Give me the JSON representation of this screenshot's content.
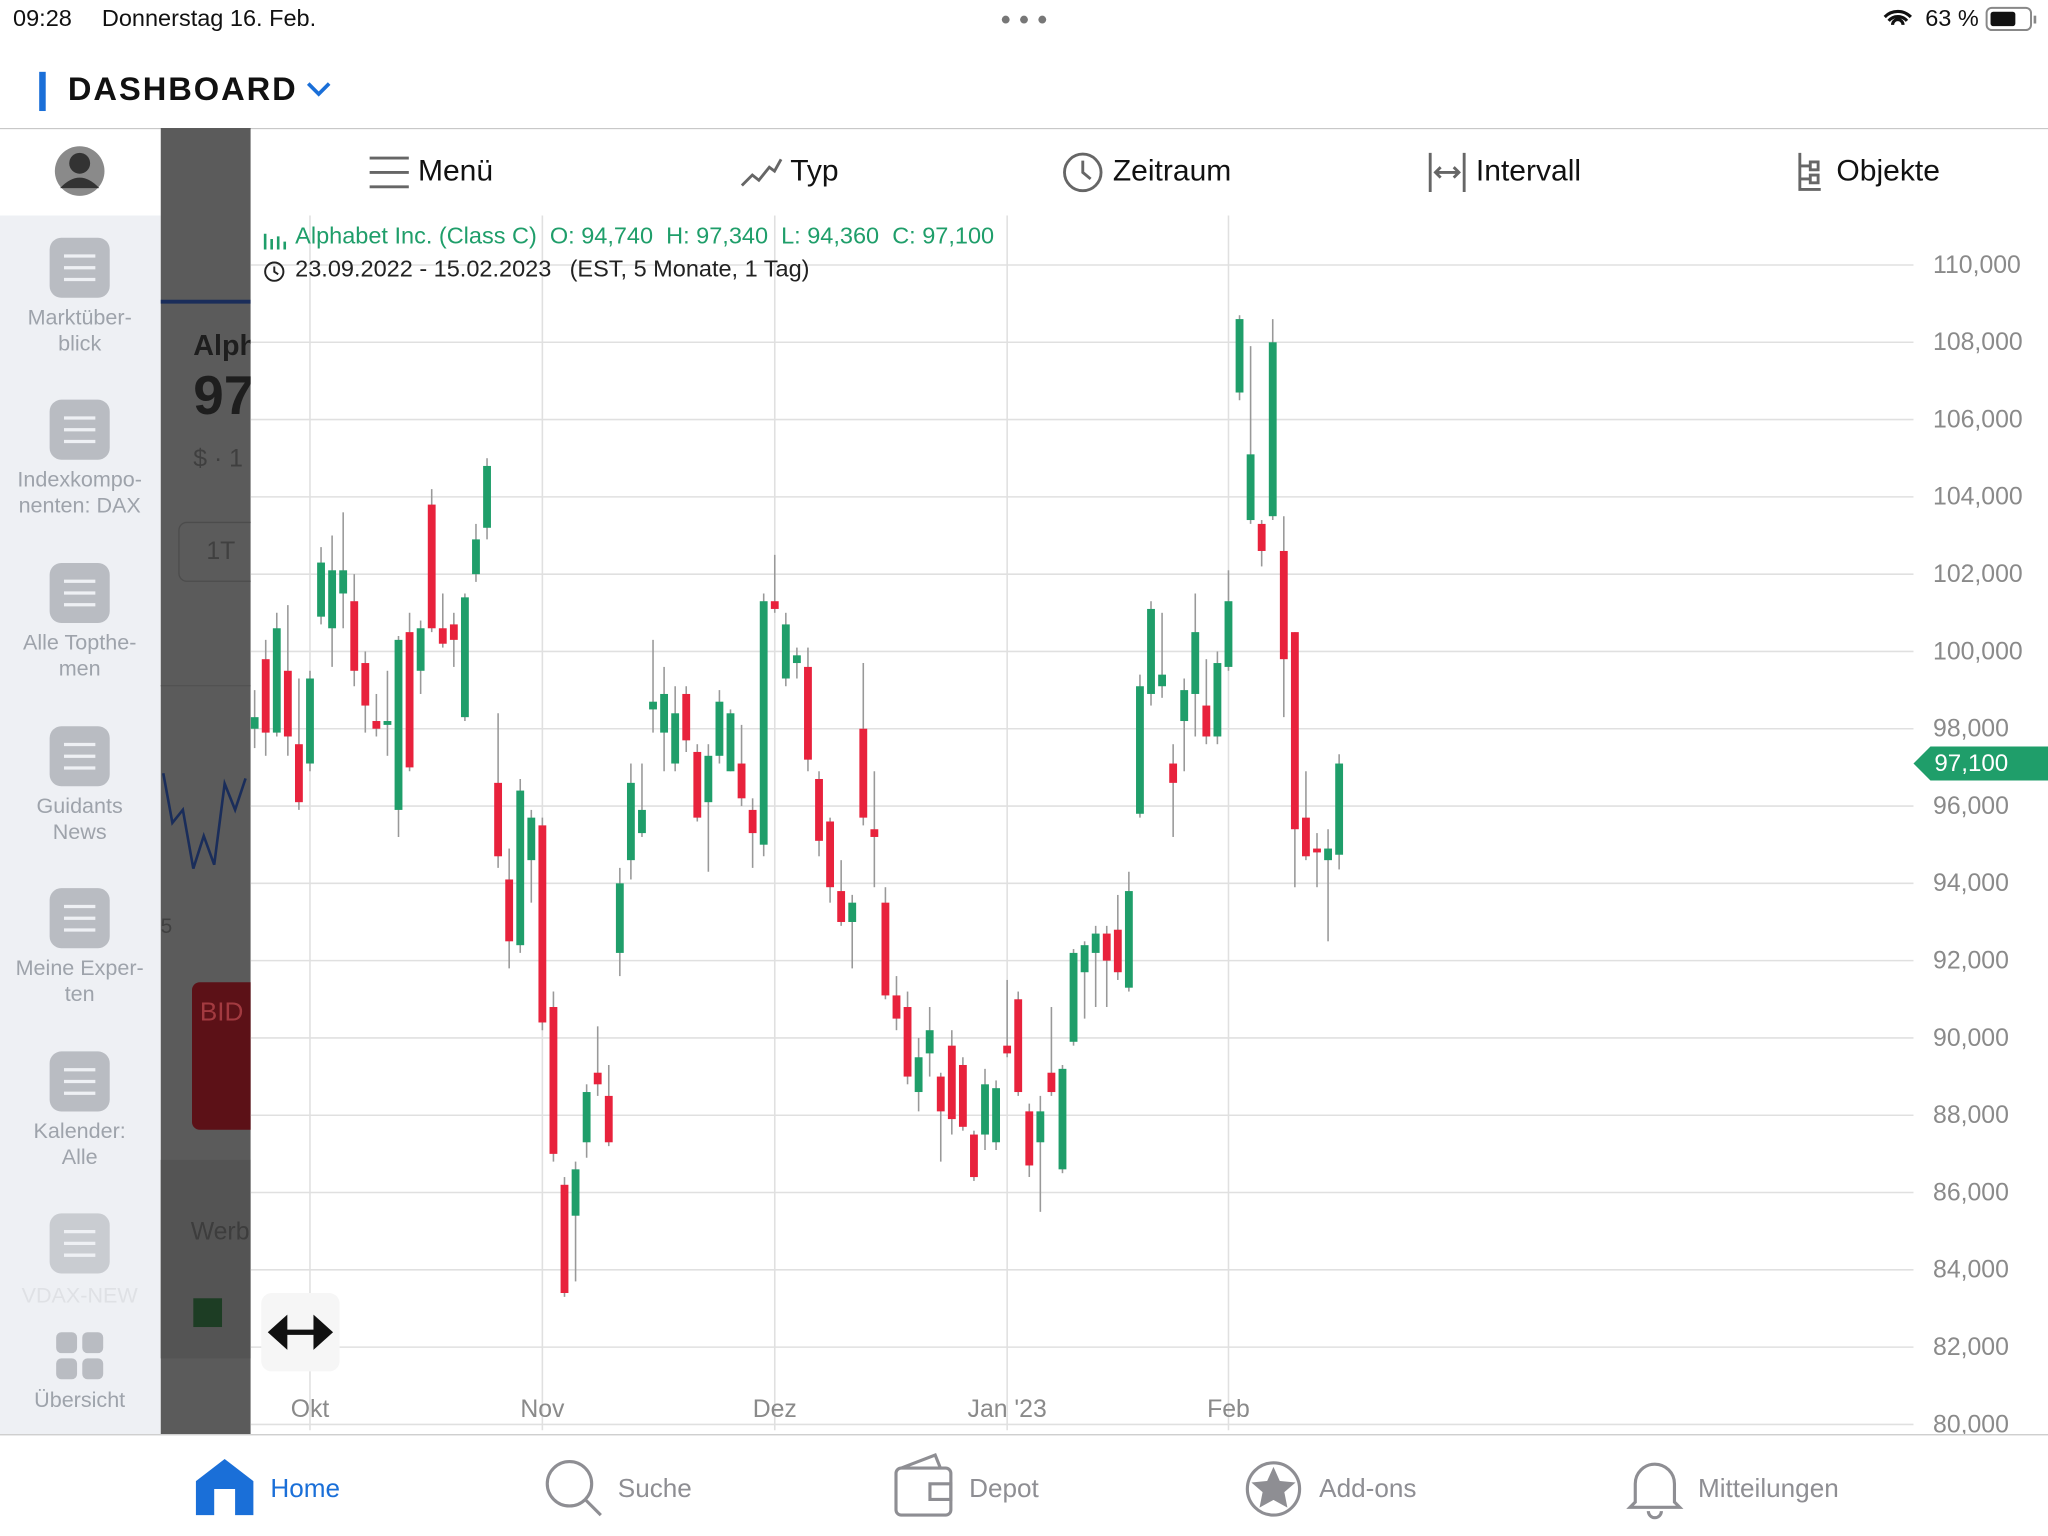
{
  "status_bar": {
    "time": "09:28",
    "date": "Donnerstag 16. Feb.",
    "battery": "63 %"
  },
  "header": {
    "title": "DASHBOARD"
  },
  "sidebar": {
    "items": [
      [
        "Marktüber-",
        "blick"
      ],
      [
        "Indexkompo-",
        "nenten: DAX"
      ],
      [
        "Alle Topthe-",
        "men"
      ],
      [
        "Guidants",
        "News"
      ],
      [
        "Meine Exper-",
        "ten"
      ],
      [
        "Kalender:",
        "Alle"
      ],
      [
        "VDAX-NEW"
      ],
      [
        "Übersicht"
      ]
    ]
  },
  "background": {
    "name": "Alph",
    "price": "97",
    "currency": "$ · 1",
    "period": "1T",
    "axis": "5",
    "bid": "BID",
    "ad": "Werb"
  },
  "toolbar": [
    "Menü",
    "Typ",
    "Zeitraum",
    "Intervall",
    "Objekte"
  ],
  "chart_data": {
    "type": "candlestick",
    "instrument": "Alphabet Inc. (Class C)",
    "ohlc": [
      "O: 94,740",
      "H: 97,340",
      "L: 94,360",
      "C: 97,100"
    ],
    "range": "23.09.2022 - 15.02.2023",
    "range_detail": "(EST, 5 Monate, 1 Tag)",
    "up_color": "#1f9e6a",
    "down_color": "#e8223c",
    "grid": true,
    "open": [
      98000,
      99800,
      97900,
      99500,
      97600,
      97100,
      100900,
      100600,
      101500,
      101300,
      99700,
      98200,
      98100,
      95900,
      100500,
      99500,
      103800,
      100600,
      100700,
      98300,
      102000,
      103200,
      96600,
      94100,
      92400,
      94600,
      95500,
      90800,
      86200,
      85400,
      87300,
      89100,
      88500,
      92200,
      94600,
      95300,
      98500,
      97900,
      97100,
      98900,
      97400,
      96100,
      97300,
      96900,
      97100,
      95900,
      95000,
      101300,
      99300,
      99700,
      99600,
      96700,
      95600,
      93800,
      93000,
      98000,
      95400,
      93500,
      91100,
      90800,
      88600,
      89600,
      89000,
      89800,
      89300,
      87500,
      87500,
      87300,
      89800,
      91000,
      88100,
      87300,
      89100,
      86600,
      89900,
      91700,
      92200,
      92700,
      92800,
      91300,
      95800,
      98900,
      99100,
      97100,
      98200,
      98900,
      98600,
      97800,
      99600,
      106700,
      103400,
      103300,
      103500,
      102600,
      100500,
      95700,
      94900,
      94600,
      94740
    ],
    "high": [
      99000,
      100300,
      101000,
      101200,
      99300,
      99500,
      102700,
      103000,
      103600,
      102000,
      100000,
      98900,
      99500,
      100400,
      101000,
      100800,
      104200,
      101500,
      101000,
      101500,
      103300,
      105000,
      98400,
      94900,
      96700,
      95900,
      95700,
      91200,
      86400,
      86800,
      88800,
      90300,
      89300,
      94400,
      97100,
      97100,
      100300,
      99600,
      99100,
      99100,
      97600,
      97600,
      99000,
      98500,
      98100,
      96200,
      101500,
      102500,
      101000,
      100100,
      100100,
      96900,
      95700,
      94600,
      93700,
      99700,
      96900,
      93900,
      91600,
      91200,
      90000,
      90800,
      89100,
      90200,
      89500,
      87600,
      89200,
      88900,
      91500,
      91200,
      88300,
      88500,
      90800,
      89300,
      92300,
      92500,
      92900,
      92900,
      93700,
      94300,
      99400,
      101300,
      101000,
      97600,
      99300,
      101500,
      99800,
      100000,
      102100,
      108700,
      107900,
      103400,
      108600,
      103500,
      100500,
      96900,
      95300,
      95400,
      97340
    ],
    "low": [
      97500,
      97300,
      97800,
      97300,
      95900,
      96900,
      100700,
      99600,
      100600,
      99100,
      97900,
      97800,
      97300,
      95200,
      96900,
      98900,
      100500,
      100100,
      99600,
      98200,
      101800,
      102900,
      94400,
      91800,
      92200,
      93500,
      90200,
      86800,
      83300,
      83700,
      86900,
      88500,
      87200,
      91600,
      94100,
      95200,
      97900,
      96900,
      96900,
      97400,
      95600,
      94300,
      97100,
      96900,
      96000,
      94400,
      94700,
      101000,
      99100,
      99300,
      96900,
      94700,
      93500,
      92900,
      91800,
      95500,
      93900,
      91000,
      90200,
      88800,
      88100,
      89000,
      86800,
      87500,
      87600,
      86300,
      87100,
      87100,
      89500,
      88500,
      86400,
      85500,
      88500,
      86500,
      89800,
      90500,
      90800,
      90800,
      91500,
      91200,
      95700,
      98600,
      98800,
      95200,
      96900,
      97800,
      97600,
      97600,
      99500,
      106500,
      103300,
      102200,
      103400,
      98300,
      93900,
      94600,
      93900,
      92500,
      94360
    ],
    "close": [
      98300,
      97900,
      100600,
      97800,
      96100,
      99300,
      102300,
      102100,
      102100,
      99500,
      98600,
      98000,
      98200,
      100300,
      97000,
      100600,
      100600,
      100200,
      100300,
      101400,
      102900,
      104800,
      94700,
      92500,
      96400,
      95700,
      90400,
      87000,
      83400,
      86600,
      88600,
      88800,
      87300,
      94000,
      96600,
      95900,
      98700,
      98900,
      98400,
      97700,
      95700,
      97300,
      98700,
      98400,
      96200,
      95300,
      101300,
      101100,
      100700,
      99900,
      97200,
      95100,
      93900,
      93000,
      93500,
      95700,
      95200,
      91100,
      90500,
      89000,
      89500,
      90200,
      88100,
      87900,
      87700,
      86400,
      88800,
      88700,
      89600,
      88600,
      86700,
      88100,
      88600,
      89200,
      92200,
      92400,
      92700,
      92000,
      91700,
      93800,
      99100,
      101100,
      99400,
      96600,
      99000,
      100500,
      97800,
      99700,
      101300,
      108600,
      105100,
      102600,
      108000,
      99800,
      95400,
      94700,
      94800,
      94900,
      97100
    ],
    "xlim": [
      -0.35,
      149.9
    ],
    "xticks": [
      {
        "value": 5,
        "label": "Okt"
      },
      {
        "value": 26,
        "label": "Nov"
      },
      {
        "value": 47,
        "label": "Dez"
      },
      {
        "value": 68,
        "label": "Jan '23"
      },
      {
        "value": 88,
        "label": "Feb"
      }
    ],
    "ylim": [
      79850,
      111280
    ],
    "yticks": [
      {
        "value": 80000,
        "label": "80,000"
      },
      {
        "value": 82000,
        "label": "82,000"
      },
      {
        "value": 84000,
        "label": "84,000"
      },
      {
        "value": 86000,
        "label": "86,000"
      },
      {
        "value": 88000,
        "label": "88,000"
      },
      {
        "value": 90000,
        "label": "90,000"
      },
      {
        "value": 92000,
        "label": "92,000"
      },
      {
        "value": 94000,
        "label": "94,000"
      },
      {
        "value": 96000,
        "label": "96,000"
      },
      {
        "value": 98000,
        "label": "98,000"
      },
      {
        "value": 100000,
        "label": "100,000"
      },
      {
        "value": 102000,
        "label": "102,000"
      },
      {
        "value": 104000,
        "label": "104,000"
      },
      {
        "value": 106000,
        "label": "106,000"
      },
      {
        "value": 108000,
        "label": "108,000"
      },
      {
        "value": 110000,
        "label": "110,000"
      }
    ],
    "last_price": {
      "value": 97100,
      "label": "97,100"
    }
  },
  "tabs": [
    "Home",
    "Suche",
    "Depot",
    "Add-ons",
    "Mitteilungen"
  ]
}
